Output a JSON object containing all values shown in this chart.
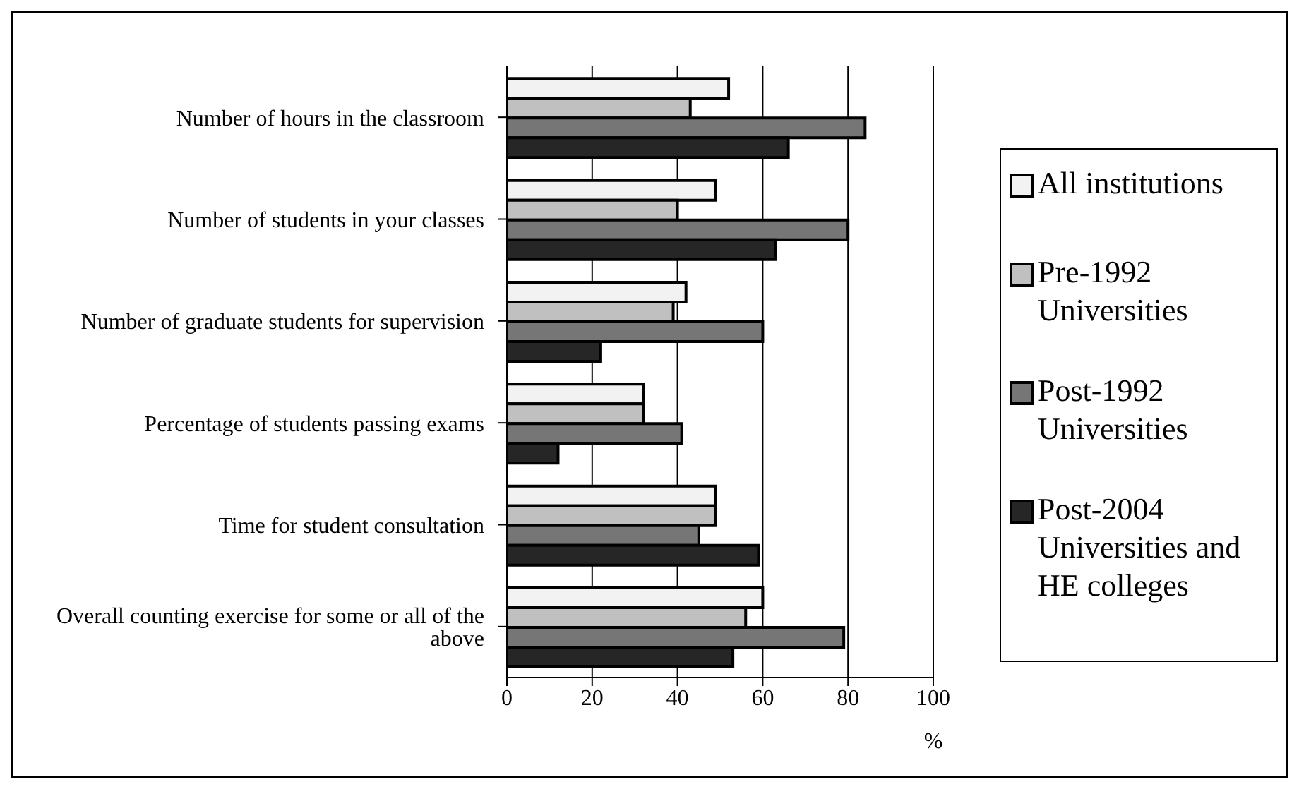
{
  "chart_data": {
    "type": "bar",
    "orientation": "horizontal",
    "xlabel": "%",
    "categories": [
      "Number of hours in the classroom",
      "Number of students in your classes",
      "Number of graduate students for supervision",
      "Percentage of students passing exams",
      "Time for student consultation",
      "Overall counting exercise for some or all of the above"
    ],
    "series": [
      {
        "name": "All institutions",
        "color": "#f2f2f2",
        "values": [
          52,
          49,
          42,
          32,
          49,
          60
        ]
      },
      {
        "name": "Pre-1992 Universities",
        "color": "#c0c0c0",
        "values": [
          43,
          40,
          39,
          32,
          49,
          56
        ]
      },
      {
        "name": "Post-1992 Universities",
        "color": "#767676",
        "values": [
          84,
          80,
          60,
          41,
          45,
          79
        ]
      },
      {
        "name": "Post-2004 Universities and HE colleges",
        "color": "#262626",
        "values": [
          66,
          63,
          22,
          12,
          59,
          53
        ]
      }
    ],
    "xlim": [
      0,
      100
    ],
    "xticks": [
      0,
      20,
      40,
      60,
      80,
      100
    ],
    "grid": "x",
    "legend": "right"
  }
}
